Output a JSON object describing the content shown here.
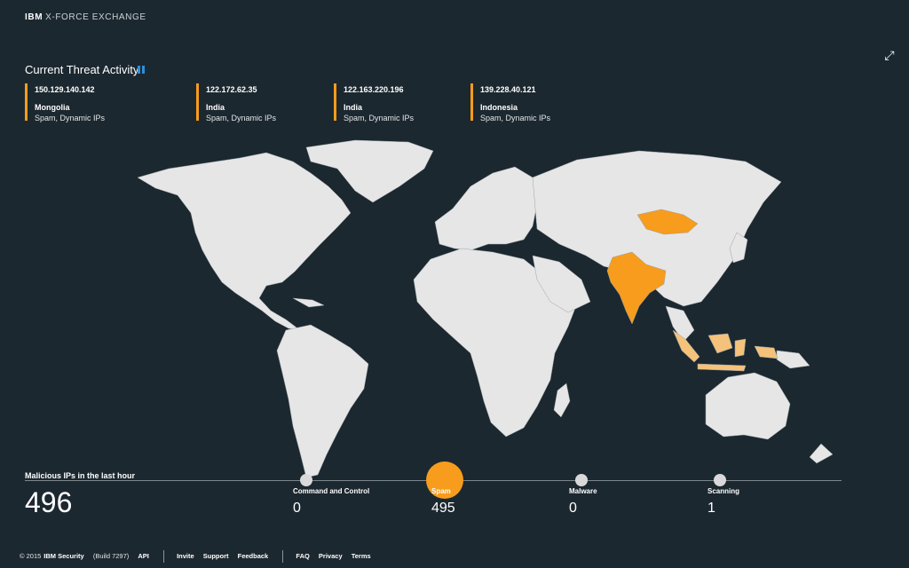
{
  "header": {
    "brand_bold": "IBM",
    "brand_rest": "X-FORCE EXCHANGE",
    "expand_icon": "expand-arrows-icon"
  },
  "threats": {
    "title": "Current Threat Activity",
    "items": [
      {
        "ip": "150.129.140.142",
        "country": "Mongolia",
        "types": "Spam, Dynamic IPs"
      },
      {
        "ip": "122.172.62.35",
        "country": "India",
        "types": "Spam, Dynamic IPs"
      },
      {
        "ip": "122.163.220.196",
        "country": "India",
        "types": "Spam, Dynamic IPs"
      },
      {
        "ip": "139.228.40.121",
        "country": "Indonesia",
        "types": "Spam, Dynamic IPs"
      }
    ]
  },
  "map": {
    "land_color": "#e6e6e6",
    "highlight_color": "#f79c1c",
    "light_highlight_color": "#f4c27a"
  },
  "stats": {
    "label": "Malicious IPs in the last hour",
    "total": "496",
    "categories": [
      {
        "label": "Command and Control",
        "value": "0"
      },
      {
        "label": "Spam",
        "value": "495"
      },
      {
        "label": "Malware",
        "value": "0"
      },
      {
        "label": "Scanning",
        "value": "1"
      }
    ]
  },
  "footer": {
    "copyright": "© 2015",
    "company": "IBM Security",
    "build": "(Build 7297)",
    "api": "API",
    "invite": "Invite",
    "support": "Support",
    "feedback": "Feedback",
    "faq": "FAQ",
    "privacy": "Privacy",
    "terms": "Terms"
  }
}
